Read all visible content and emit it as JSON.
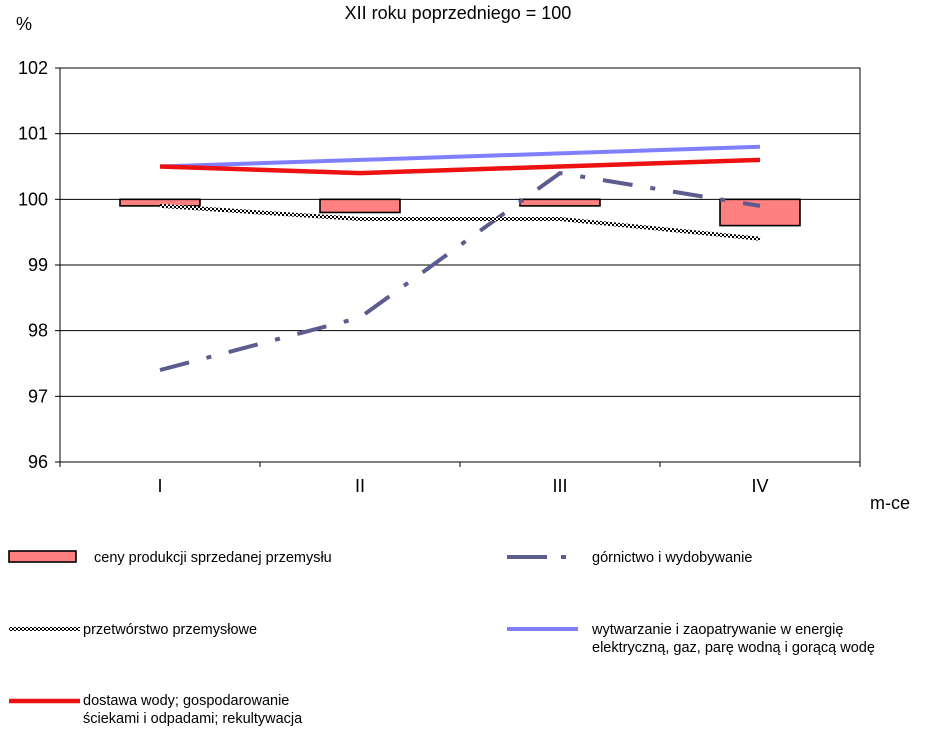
{
  "chart_data": {
    "type": "bar+line",
    "title": "XII roku poprzedniego = 100",
    "ylabel": "%",
    "xlabel": "m-ce",
    "categories": [
      "I",
      "II",
      "III",
      "IV"
    ],
    "ylim": [
      96,
      102
    ],
    "yticks": [
      96,
      97,
      98,
      99,
      100,
      101,
      102
    ],
    "grid": true,
    "baseline": 100,
    "series": [
      {
        "name": "ceny produkcji sprzedanej przemysłu",
        "type": "bar",
        "color": "#ff8080",
        "values": [
          99.9,
          99.8,
          99.9,
          99.6
        ]
      },
      {
        "name": "górnictwo i wydobywanie",
        "type": "line",
        "style": "dash-dot",
        "color": "#5c5c8e",
        "values": [
          97.4,
          98.2,
          100.4,
          99.9
        ]
      },
      {
        "name": "przetwórstwo przemysłowe",
        "type": "line",
        "style": "checkered",
        "color": "#000000",
        "values": [
          99.9,
          99.7,
          99.7,
          99.4
        ]
      },
      {
        "name": "wytwarzanie i zaopatrywanie w energię elektryczną, gaz, parę wodną i gorącą wodę",
        "type": "line",
        "style": "solid",
        "color": "#8080ff",
        "values": [
          100.5,
          100.6,
          100.7,
          100.8
        ]
      },
      {
        "name": "dostawa wody; gospodarowanie ściekami i odpadami; rekultywacja",
        "type": "line",
        "style": "solid-thick",
        "color": "#ee1111",
        "values": [
          100.5,
          100.4,
          100.5,
          100.6
        ]
      }
    ],
    "legend_position": "bottom"
  },
  "legend": [
    {
      "label": "ceny produkcji sprzedanej przemysłu"
    },
    {
      "label": "górnictwo i wydobywanie"
    },
    {
      "label": "przetwórstwo przemysłowe"
    },
    {
      "label": "wytwarzanie i zaopatrywanie w energię\nelektryczną, gaz, parę wodną i gorącą wodę"
    },
    {
      "label": "dostawa wody; gospodarowanie\nściekami i odpadami; rekultywacja"
    }
  ]
}
